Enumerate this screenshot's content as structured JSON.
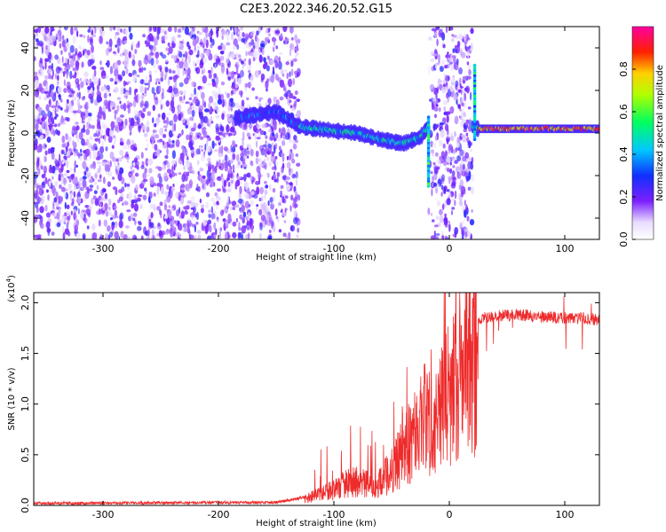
{
  "title": "C2E3.2022.346.20.52.G15",
  "colors": {
    "snr_line": "#ee2b2b",
    "frame": "#000000"
  },
  "chart_data": [
    {
      "type": "heatmap",
      "name": "spectrogram",
      "xlabel": "Height of straight line (km)",
      "ylabel": "Frequency (Hz)",
      "xlim": [
        -360,
        130
      ],
      "ylim": [
        -50,
        50
      ],
      "xticks": [
        -300,
        -200,
        -100,
        0,
        100
      ],
      "yticks": [
        -40,
        -20,
        0,
        20,
        40
      ],
      "colorbar": {
        "label": "Normalized spectral amplitude",
        "range": [
          0,
          1
        ],
        "ticks": [
          "0.0",
          "0.2",
          "0.4",
          "0.6",
          "0.8"
        ],
        "colormap": "rainbow (white → violet → blue → cyan → green → yellow → red → magenta)"
      },
      "features": [
        {
          "name": "noise-region",
          "x_range": [
            -360,
            -130
          ],
          "y_range": [
            -50,
            50
          ],
          "amplitude": 0.1
        },
        {
          "name": "noise-burst",
          "x_range": [
            -18,
            20
          ],
          "y_range": [
            -50,
            50
          ],
          "amplitude": 0.12
        },
        {
          "name": "signal-track",
          "points": [
            [
              -185,
              7
            ],
            [
              -150,
              10
            ],
            [
              -130,
              3
            ],
            [
              -100,
              1
            ],
            [
              -80,
              0
            ],
            [
              -60,
              -3
            ],
            [
              -40,
              -5
            ],
            [
              -25,
              -2
            ],
            [
              -18,
              3
            ],
            [
              20,
              3
            ],
            [
              25,
              2
            ],
            [
              60,
              2
            ],
            [
              100,
              2
            ],
            [
              130,
              2
            ]
          ]
        }
      ]
    },
    {
      "type": "line",
      "name": "snr",
      "xlabel": "Height of straight line (km)",
      "ylabel": "SNR (10 * v/v)",
      "y_multiplier": "(x10",
      "y_multiplier_exp": "4",
      "y_multiplier_close": ")",
      "xlim": [
        -360,
        130
      ],
      "ylim": [
        0,
        2.1
      ],
      "xticks": [
        -300,
        -200,
        -100,
        0,
        100
      ],
      "yticks": [
        "0.0",
        "0.5",
        "1.0",
        "1.5",
        "2.0"
      ],
      "envelope": {
        "x": [
          -360,
          -150,
          -125,
          -100,
          -85,
          -75,
          -60,
          -50,
          -40,
          -30,
          -20,
          -10,
          0,
          10,
          20,
          30,
          40,
          60,
          80,
          100,
          115,
          130
        ],
        "y": [
          0.02,
          0.03,
          0.08,
          0.2,
          0.3,
          0.28,
          0.28,
          0.45,
          0.7,
          0.9,
          1.1,
          1.3,
          1.5,
          1.7,
          1.8,
          1.85,
          1.87,
          1.88,
          1.86,
          1.85,
          1.85,
          1.83
        ]
      }
    }
  ]
}
